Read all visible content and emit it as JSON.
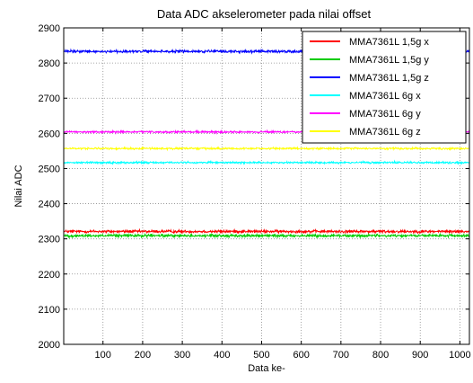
{
  "chart_data": {
    "type": "line",
    "title": "Data ADC akselerometer pada nilai offset",
    "xlabel": "Data ke-",
    "ylabel": "Nilai ADC",
    "xlim": [
      1,
      1024
    ],
    "ylim": [
      2000,
      2900
    ],
    "xticks": [
      100,
      200,
      300,
      400,
      500,
      600,
      700,
      800,
      900,
      1000
    ],
    "yticks": [
      2000,
      2100,
      2200,
      2300,
      2400,
      2500,
      2600,
      2700,
      2800,
      2900
    ],
    "grid": true,
    "legend_position": "top-right",
    "series": [
      {
        "name": "MMA7361L 1,5g x",
        "color": "#ff0000",
        "mean": 2321,
        "noise": 3,
        "n_points": 1024
      },
      {
        "name": "MMA7361L 1,5g y",
        "color": "#00cc00",
        "mean": 2309,
        "noise": 3,
        "n_points": 1024
      },
      {
        "name": "MMA7361L 1,5g z",
        "color": "#0000ff",
        "mean": 2833,
        "noise": 3,
        "n_points": 1024
      },
      {
        "name": "MMA7361L 6g x",
        "color": "#00ffff",
        "mean": 2517,
        "noise": 2,
        "n_points": 1024
      },
      {
        "name": "MMA7361L 6g y",
        "color": "#ff00ff",
        "mean": 2604,
        "noise": 2,
        "n_points": 1024
      },
      {
        "name": "MMA7361L 6g z",
        "color": "#ffff00",
        "mean": 2557,
        "noise": 2,
        "n_points": 1024
      }
    ]
  }
}
